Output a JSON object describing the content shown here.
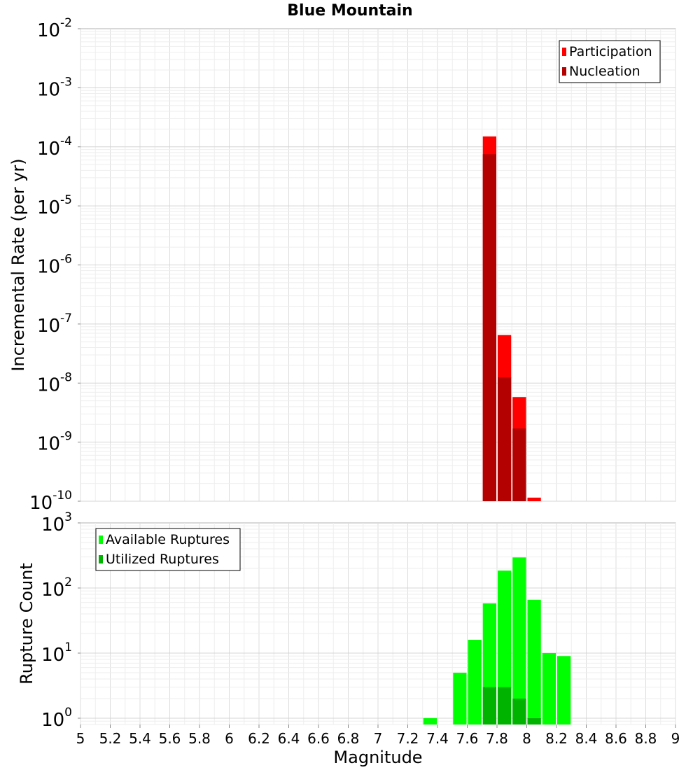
{
  "chart_data": [
    {
      "type": "bar",
      "title": "Blue Mountain",
      "ylabel": "Incremental Rate (per yr)",
      "yscale": "log",
      "ylim": [
        1e-10,
        0.01
      ],
      "y_tick_base": "10",
      "y_tick_exponents": [
        "-10",
        "-9",
        "-8",
        "-7",
        "-6",
        "-5",
        "-4",
        "-3",
        "-2"
      ],
      "grid": true,
      "legend_position": "top-right",
      "series": [
        {
          "name": "Participation",
          "color": "#ff0000",
          "points": [
            {
              "x": 7.75,
              "y": 0.00015
            },
            {
              "x": 7.85,
              "y": 6.5e-08
            },
            {
              "x": 7.95,
              "y": 5.8e-09
            },
            {
              "x": 8.05,
              "y": 1.15e-10
            }
          ]
        },
        {
          "name": "Nucleation",
          "color": "#b30000",
          "points": [
            {
              "x": 7.75,
              "y": 7.5e-05
            },
            {
              "x": 7.85,
              "y": 1.25e-08
            },
            {
              "x": 7.95,
              "y": 1.7e-09
            }
          ]
        }
      ]
    },
    {
      "type": "bar",
      "xlabel": "Magnitude",
      "ylabel": "Rupture Count",
      "yscale": "log",
      "ylim": [
        0.8,
        1000
      ],
      "y_tick_base": "10",
      "y_tick_exponents": [
        "0",
        "1",
        "2",
        "3"
      ],
      "xlim": [
        5,
        9
      ],
      "x_ticks": [
        "5",
        "5.2",
        "5.4",
        "5.6",
        "5.8",
        "6",
        "6.2",
        "6.4",
        "6.6",
        "6.8",
        "7",
        "7.2",
        "7.4",
        "7.6",
        "7.8",
        "8",
        "8.2",
        "8.4",
        "8.6",
        "8.8",
        "9"
      ],
      "grid": true,
      "legend_position": "top-left",
      "series": [
        {
          "name": "Available Ruptures",
          "color": "#00ff00",
          "points": [
            {
              "x": 7.35,
              "y": 1
            },
            {
              "x": 7.55,
              "y": 5
            },
            {
              "x": 7.65,
              "y": 16
            },
            {
              "x": 7.75,
              "y": 58
            },
            {
              "x": 7.85,
              "y": 185
            },
            {
              "x": 7.95,
              "y": 295
            },
            {
              "x": 8.05,
              "y": 66
            },
            {
              "x": 8.15,
              "y": 10
            },
            {
              "x": 8.25,
              "y": 9
            }
          ]
        },
        {
          "name": "Utilized Ruptures",
          "color": "#00b300",
          "points": [
            {
              "x": 7.75,
              "y": 3
            },
            {
              "x": 7.85,
              "y": 3
            },
            {
              "x": 7.95,
              "y": 2
            },
            {
              "x": 8.05,
              "y": 1
            }
          ]
        }
      ]
    }
  ]
}
